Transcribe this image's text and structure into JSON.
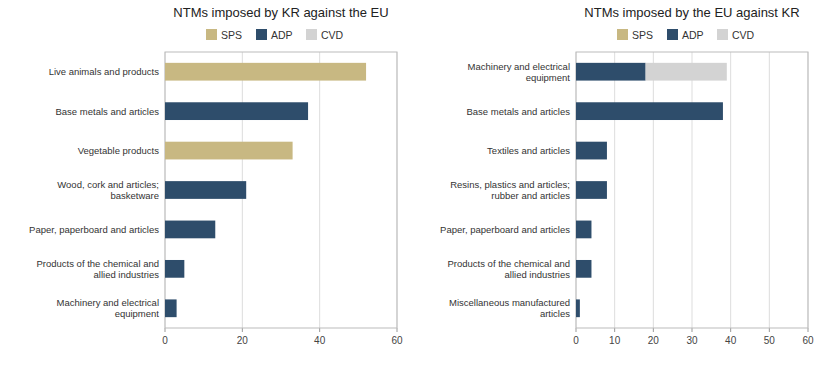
{
  "chart_data": [
    {
      "type": "bar",
      "orientation": "horizontal",
      "stacked": true,
      "title": "NTMs imposed by KR against the EU",
      "categories": [
        "Live animals and products",
        "Base metals and articles",
        "Vegetable products",
        "Wood, cork and articles;\nbasketware",
        "Paper, paperboard and articles",
        "Products of the chemical and\nallied industries",
        "Machinery and electrical\nequipment"
      ],
      "series": [
        {
          "name": "SPS",
          "color": "#C8B882",
          "values": [
            52,
            0,
            33,
            0,
            0,
            0,
            0
          ]
        },
        {
          "name": "ADP",
          "color": "#2E4D6B",
          "values": [
            0,
            37,
            0,
            21,
            13,
            5,
            3
          ]
        },
        {
          "name": "CVD",
          "color": "#D3D3D3",
          "values": [
            0,
            0,
            0,
            0,
            0,
            0,
            0
          ]
        }
      ],
      "xlim": [
        0,
        60
      ],
      "xticks": [
        0,
        20,
        40,
        60
      ],
      "grid": true,
      "legend": "top"
    },
    {
      "type": "bar",
      "orientation": "horizontal",
      "stacked": true,
      "title": "NTMs imposed by the EU against KR",
      "categories": [
        "Machinery and electrical\nequipment",
        "Base metals and articles",
        "Textiles and articles",
        "Resins, plastics and articles;\nrubber and articles",
        "Paper, paperboard and articles",
        "Products of the chemical and\nallied industries",
        "Miscellaneous manufactured\narticles"
      ],
      "series": [
        {
          "name": "SPS",
          "color": "#C8B882",
          "values": [
            0,
            0,
            0,
            0,
            0,
            0,
            0
          ]
        },
        {
          "name": "ADP",
          "color": "#2E4D6B",
          "values": [
            18,
            38,
            8,
            8,
            4,
            4,
            1
          ]
        },
        {
          "name": "CVD",
          "color": "#D3D3D3",
          "values": [
            21,
            0,
            0,
            0,
            0,
            0,
            0
          ]
        }
      ],
      "xlim": [
        0,
        60
      ],
      "xticks": [
        0,
        10,
        20,
        30,
        40,
        50,
        60
      ],
      "grid": true,
      "legend": "top"
    }
  ]
}
